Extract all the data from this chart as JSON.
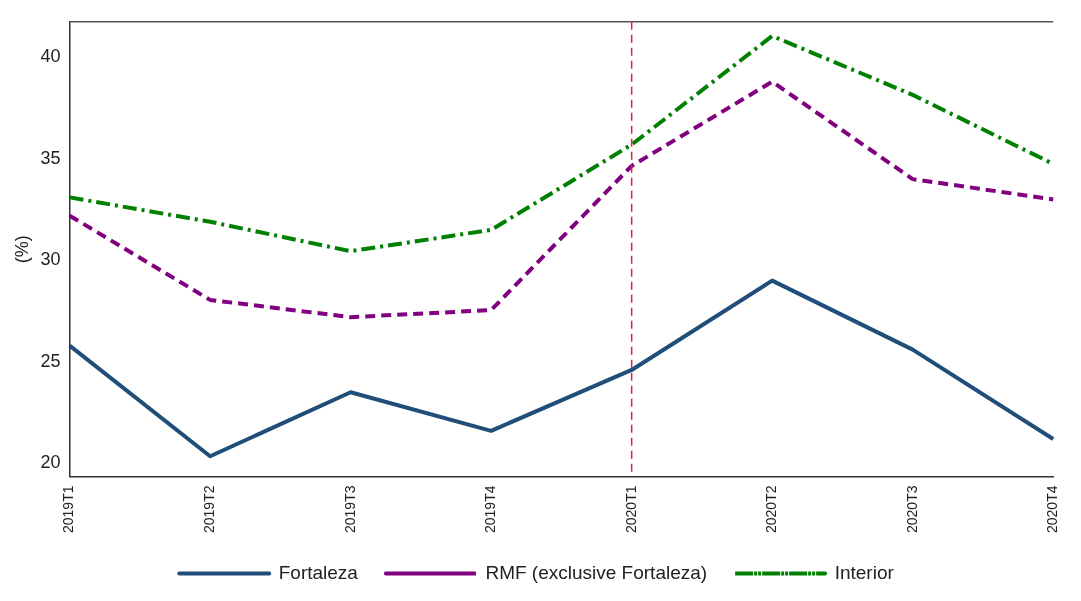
{
  "chart_data": {
    "type": "line",
    "ylabel": "(%)",
    "categories": [
      "2019T1",
      "2019T2",
      "2019T3",
      "2019T4",
      "2020T1",
      "2020T2",
      "2020T3",
      "2020T4"
    ],
    "series": [
      {
        "name": "Fortaleza",
        "color": "#1f4e79",
        "line_style": "solid",
        "values": [
          25.8,
          20.35,
          23.5,
          21.6,
          24.6,
          29.0,
          25.6,
          21.2
        ]
      },
      {
        "name": "RMF (exclusive Fortaleza)",
        "color": "#800080",
        "line_style": "dashed",
        "values": [
          32.2,
          28.05,
          27.2,
          27.55,
          34.65,
          38.8,
          34.0,
          33.0
        ]
      },
      {
        "name": "Interior",
        "color": "#008000",
        "line_style": "dashed",
        "values": [
          33.1,
          31.9,
          30.45,
          31.5,
          35.7,
          41.05,
          38.15,
          34.75
        ]
      }
    ],
    "ylim": [
      19.35,
      41.75
    ],
    "yticks": [
      20,
      25,
      30,
      35,
      40
    ],
    "grid": false,
    "legend": "bottom",
    "marker": "none",
    "ref_lines": [
      {
        "axis": "x",
        "value": "2020T1",
        "color": "#e0203c",
        "line_style": "dashed"
      }
    ]
  }
}
